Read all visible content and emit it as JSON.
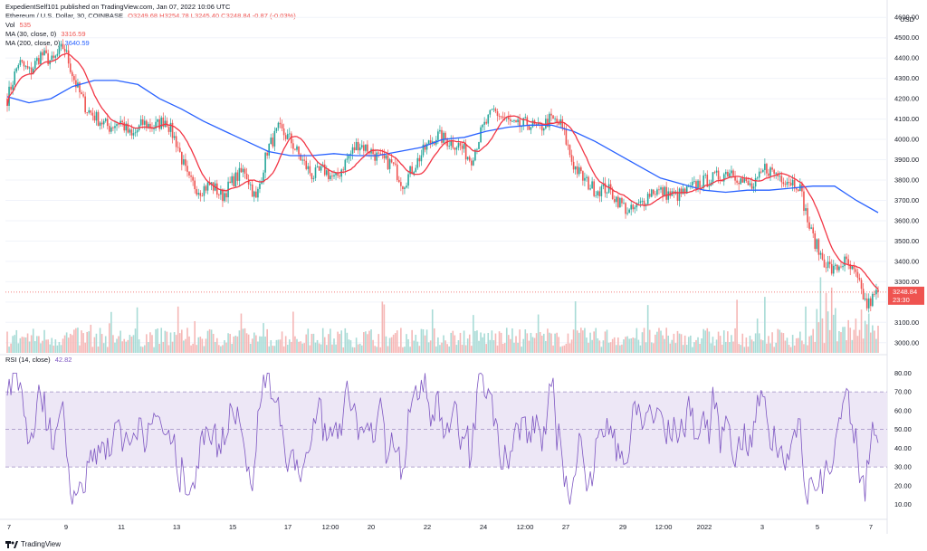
{
  "publish_line": "ExpedientSelf101 published on TradingView.com, Jan 07, 2022 10:06 UTC",
  "legend": {
    "symbol": "Ethereum / U.S. Dollar, 30, COINBASE",
    "ohlc": "O3249.68  H3254.78  L3245.40  C3248.84  -0.87 (-0.03%)",
    "vol_label": "Vol",
    "vol_value": "535",
    "ma30_label": "MA (30, close, 0)",
    "ma30_value": "3316.59",
    "ma200_label": "MA (200, close, 0)",
    "ma200_value": "3640.59",
    "rsi_label": "RSI (14, close)",
    "rsi_value": "42.82"
  },
  "currency": "USD",
  "last_price": "3248.84",
  "countdown": "23:30",
  "brand": "TradingView",
  "colors": {
    "up": "#26a69a",
    "down": "#ef5350",
    "ma30": "#f23645",
    "ma200": "#2962ff",
    "rsi": "#7e57c2",
    "rsi_band": "#ede7f6"
  },
  "chart_data": [
    {
      "type": "candlestick",
      "title": "Ethereum / U.S. Dollar, 30, COINBASE",
      "ylim": [
        2950,
        4650
      ],
      "y_ticks": [
        3000,
        3100,
        3200,
        3300,
        3400,
        3500,
        3600,
        3700,
        3800,
        3900,
        4000,
        4100,
        4200,
        4300,
        4400,
        4500,
        4600
      ],
      "x_ticks": [
        "7",
        "9",
        "11",
        "13",
        "15",
        "17",
        "12:00",
        "20",
        "22",
        "24",
        "12:00",
        "27",
        "29",
        "12:00",
        "2022",
        "3",
        "5",
        "7"
      ],
      "close_path": [
        4200,
        4380,
        4330,
        4420,
        4380,
        4460,
        4280,
        4150,
        4100,
        4060,
        4090,
        4010,
        4080,
        4060,
        4100,
        3980,
        3800,
        3750,
        3780,
        3720,
        3800,
        3850,
        3700,
        3950,
        4050,
        4000,
        3900,
        3820,
        3850,
        3800,
        3900,
        3980,
        3950,
        3900,
        3880,
        3780,
        3870,
        3960,
        4020,
        3990,
        3970,
        3900,
        4050,
        4140,
        4100,
        4060,
        4080,
        4050,
        4100,
        4070,
        3880,
        3800,
        3750,
        3760,
        3700,
        3640,
        3680,
        3750,
        3740,
        3720,
        3740,
        3780,
        3800,
        3820,
        3850,
        3790,
        3760,
        3860,
        3830,
        3800,
        3780,
        3550,
        3420,
        3350,
        3400,
        3330,
        3180,
        3250
      ],
      "ma200_path": [
        4210,
        4180,
        4200,
        4260,
        4290,
        4290,
        4270,
        4200,
        4150,
        4090,
        4040,
        3990,
        3940,
        3920,
        3920,
        3930,
        3920,
        3920,
        3940,
        3960,
        4000,
        4010,
        4040,
        4060,
        4070,
        4070,
        4040,
        3990,
        3930,
        3870,
        3810,
        3780,
        3750,
        3740,
        3750,
        3750,
        3760,
        3770,
        3770,
        3700,
        3640
      ],
      "ma30_last": 3316.59
    },
    {
      "type": "volume",
      "name": "Vol",
      "last": 535
    },
    {
      "type": "line",
      "name": "RSI (14, close)",
      "ylim": [
        5,
        85
      ],
      "y_ticks": [
        10,
        20,
        30,
        40,
        50,
        60,
        70,
        80
      ],
      "band": [
        30,
        70
      ],
      "midline": 50,
      "last": 42.82
    }
  ]
}
